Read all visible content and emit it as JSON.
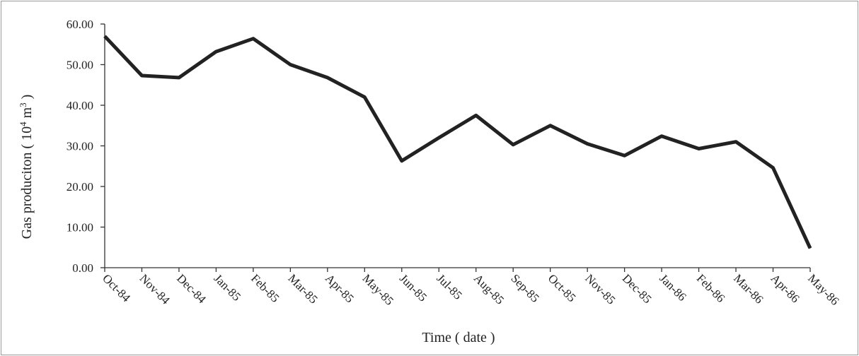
{
  "chart_data": {
    "type": "line",
    "categories": [
      "Oct-84",
      "Nov-84",
      "Dec-84",
      "Jan-85",
      "Feb-85",
      "Mar-85",
      "Apr-85",
      "May-85",
      "Jun-85",
      "Jul-85",
      "Aug-85",
      "Sep-85",
      "Oct-85",
      "Nov-85",
      "Dec-85",
      "Jan-86",
      "Feb-86",
      "Mar-86",
      "Apr-86",
      "May-86"
    ],
    "series": [
      {
        "values": [
          57.0,
          47.3,
          46.8,
          53.2,
          56.4,
          50.0,
          46.8,
          42.0,
          26.3,
          32.0,
          37.5,
          30.3,
          35.0,
          30.5,
          27.6,
          32.4,
          29.3,
          31.0,
          24.6,
          4.8
        ]
      }
    ],
    "ytick_labels": [
      "0.00",
      "10.00",
      "20.00",
      "30.00",
      "40.00",
      "50.00",
      "60.00"
    ],
    "ylim": [
      0,
      60
    ],
    "xlabel": "Time ( date )",
    "ylabel": {
      "prefix": "Gas produciton ( 10",
      "sup1": "4",
      "mid": " m",
      "sup2": "3",
      "suffix": " )"
    },
    "grid": false,
    "legend": "none",
    "line_color": "#222222"
  }
}
